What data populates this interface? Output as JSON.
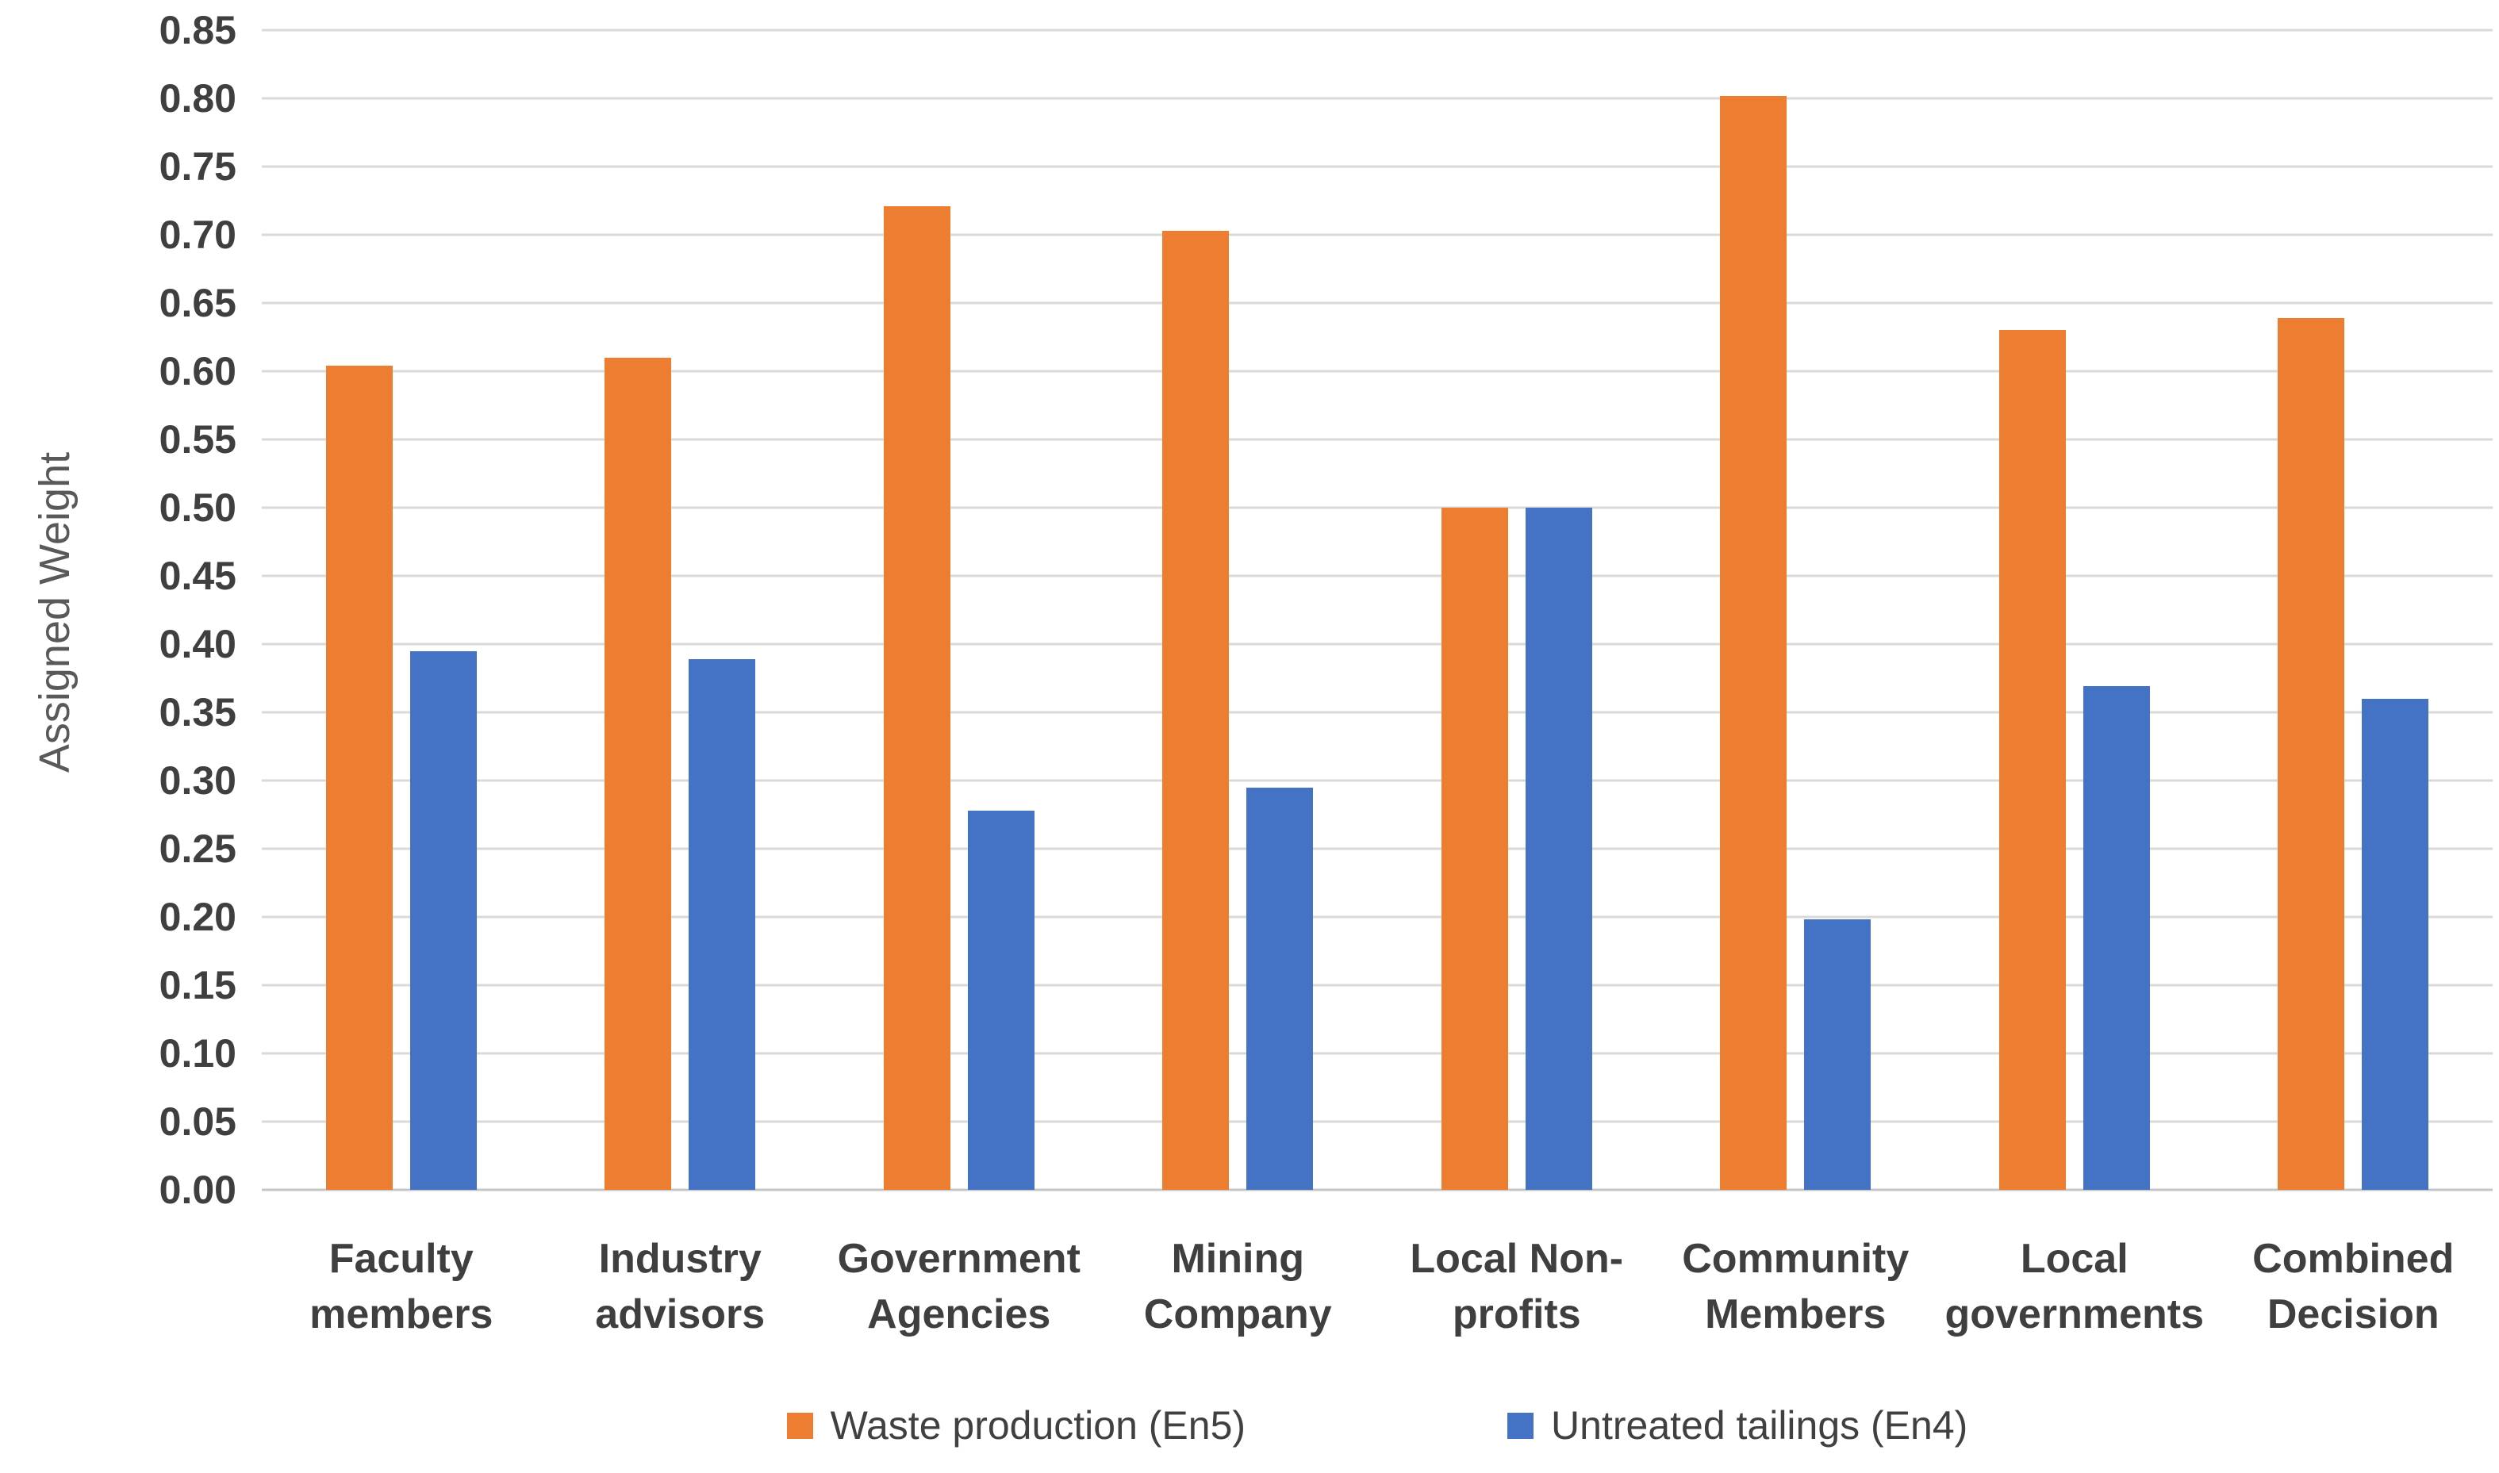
{
  "chart_data": {
    "type": "bar",
    "title": "",
    "xlabel": "",
    "ylabel": "Assigned Weight",
    "ylim": [
      0.0,
      0.85
    ],
    "ytick_step": 0.05,
    "yticks": [
      "0.85",
      "0.80",
      "0.75",
      "0.70",
      "0.65",
      "0.60",
      "0.55",
      "0.50",
      "0.45",
      "0.40",
      "0.35",
      "0.30",
      "0.25",
      "0.20",
      "0.15",
      "0.10",
      "0.05",
      "0.00"
    ],
    "grid": true,
    "gridline_color": "#d9d9d9",
    "legend_position": "bottom",
    "categories": [
      "Faculty members",
      "Industry advisors",
      "Government Agencies",
      "Mining Company",
      "Local Non-profits",
      "Community Members",
      "Local governments",
      "Combined Decision"
    ],
    "series": [
      {
        "name": "Waste production (En5)",
        "color": "#ED7D31",
        "values": [
          0.604,
          0.61,
          0.721,
          0.703,
          0.5,
          0.802,
          0.63,
          0.639
        ]
      },
      {
        "name": "Untreated tailings (En4)",
        "color": "#4472C4",
        "values": [
          0.395,
          0.389,
          0.278,
          0.295,
          0.5,
          0.198,
          0.369,
          0.36
        ]
      }
    ]
  },
  "colors": {
    "tick_text": "#3f3f3f",
    "category_text": "#3f3f3f",
    "legend_text": "#404040",
    "axis_title_text": "#595959",
    "background": "#ffffff"
  }
}
